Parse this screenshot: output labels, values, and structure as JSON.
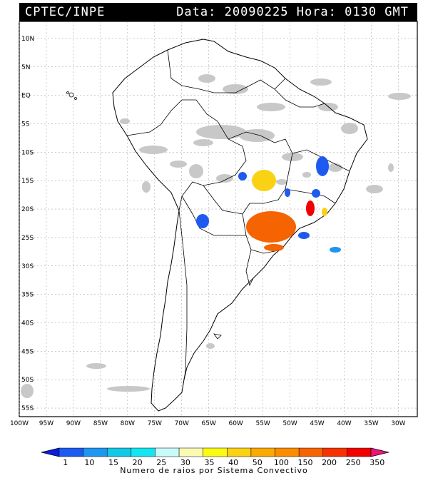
{
  "header": {
    "source": "CPTEC/INPE",
    "datetime": "Data: 20090225 Hora: 0130 GMT"
  },
  "axes": {
    "lat_labels": [
      "10N",
      "5N",
      "EQ",
      "5S",
      "10S",
      "15S",
      "20S",
      "25S",
      "30S",
      "35S",
      "40S",
      "45S",
      "50S",
      "55S"
    ],
    "lat_values": [
      10,
      5,
      0,
      -5,
      -10,
      -15,
      -20,
      -25,
      -30,
      -35,
      -40,
      -45,
      -50,
      -55
    ],
    "lon_labels": [
      "100W",
      "95W",
      "90W",
      "85W",
      "80W",
      "75W",
      "70W",
      "65W",
      "60W",
      "55W",
      "50W",
      "45W",
      "40W",
      "35W",
      "30W"
    ],
    "lon_values": [
      -100,
      -95,
      -90,
      -85,
      -80,
      -75,
      -70,
      -65,
      -60,
      -55,
      -50,
      -45,
      -40,
      -35,
      -30
    ],
    "lon_range": [
      -100,
      -26.5
    ],
    "lat_range": [
      -56.5,
      13
    ]
  },
  "colorbar": {
    "labels": [
      "1",
      "10",
      "15",
      "20",
      "25",
      "30",
      "35",
      "40",
      "50",
      "100",
      "150",
      "200",
      "250",
      "350"
    ],
    "colors": [
      "#0a1ee0",
      "#1e5af0",
      "#1e96f0",
      "#14c8e6",
      "#14e6f0",
      "#c8fafa",
      "#fafab4",
      "#fafa14",
      "#fad214",
      "#faaa00",
      "#fa8c00",
      "#f56400",
      "#f53200",
      "#f00000",
      "#f01478"
    ],
    "caption": "Numero de raios por Sistema Convectivo"
  },
  "legend_colors": {
    "background": "#ffffff",
    "cloud": "#c8c8c8",
    "land_border": "#000000"
  }
}
